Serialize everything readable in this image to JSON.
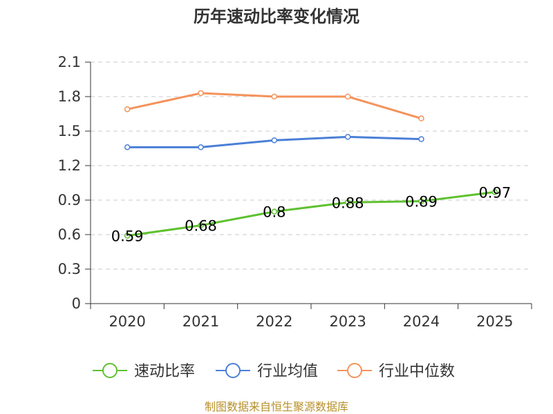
{
  "chart_data": {
    "type": "line",
    "title": "历年速动比率变化情况",
    "categories": [
      "2020",
      "2021",
      "2022",
      "2023",
      "2024",
      "2025"
    ],
    "yticks": [
      "0",
      "0.3",
      "0.6",
      "0.9",
      "1.2",
      "1.5",
      "1.8",
      "2.1"
    ],
    "ylim": [
      0,
      2.1
    ],
    "xlabel": "",
    "ylabel": "",
    "grid": true,
    "legend_position": "bottom",
    "series": [
      {
        "name": "速动比率",
        "color": "#5ec12f",
        "values": [
          0.59,
          0.68,
          0.8,
          0.88,
          0.89,
          0.97
        ],
        "labels": [
          "0.59",
          "0.68",
          "0.8",
          "0.88",
          "0.89",
          "0.97"
        ]
      },
      {
        "name": "行业均值",
        "color": "#4a7fd6",
        "values": [
          1.36,
          1.36,
          1.42,
          1.45,
          1.43,
          null
        ]
      },
      {
        "name": "行业中位数",
        "color": "#f5925a",
        "values": [
          1.69,
          1.83,
          1.8,
          1.8,
          1.61,
          null
        ]
      }
    ]
  },
  "footer": {
    "source": "制图数据来自恒生聚源数据库"
  }
}
